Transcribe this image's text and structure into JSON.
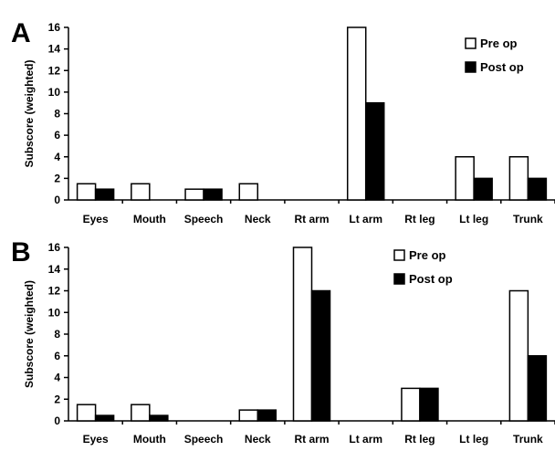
{
  "chart_data": [
    {
      "type": "bar",
      "panel_label": "A",
      "categories": [
        "Eyes",
        "Mouth",
        "Speech",
        "Neck",
        "Rt arm",
        "Lt arm",
        "Rt leg",
        "Lt leg",
        "Trunk"
      ],
      "series": [
        {
          "name": "Pre op",
          "color": "#ffffff",
          "values": [
            1.5,
            1.5,
            1,
            1.5,
            0,
            16,
            0,
            4,
            4
          ]
        },
        {
          "name": "Post op",
          "color": "#000000",
          "values": [
            1,
            0,
            1,
            0,
            0,
            9,
            0,
            2,
            2
          ]
        }
      ],
      "ylabel": "Subscore (weighted)",
      "ylim": [
        0,
        16
      ],
      "yticks": [
        0,
        2,
        4,
        6,
        8,
        10,
        12,
        14,
        16
      ],
      "grid": false,
      "legend": "top-right"
    },
    {
      "type": "bar",
      "panel_label": "B",
      "categories": [
        "Eyes",
        "Mouth",
        "Speech",
        "Neck",
        "Rt arm",
        "Lt arm",
        "Rt leg",
        "Lt leg",
        "Trunk"
      ],
      "series": [
        {
          "name": "Pre op",
          "color": "#ffffff",
          "values": [
            1.5,
            1.5,
            0,
            1,
            16,
            0,
            3,
            0,
            12
          ]
        },
        {
          "name": "Post op",
          "color": "#000000",
          "values": [
            0.5,
            0.5,
            0,
            1,
            12,
            0,
            3,
            0,
            6
          ]
        }
      ],
      "ylabel": "Subscore (weighted)",
      "ylim": [
        0,
        16
      ],
      "yticks": [
        0,
        2,
        4,
        6,
        8,
        10,
        12,
        14,
        16
      ],
      "grid": false,
      "legend": "top-right"
    }
  ]
}
